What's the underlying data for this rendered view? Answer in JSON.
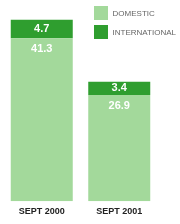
{
  "chart_data": {
    "type": "bar",
    "stacked": true,
    "categories": [
      "SEPT 2000",
      "SEPT 2001"
    ],
    "series": [
      {
        "name": "DOMESTIC",
        "color": "#a3d99b",
        "values": [
          41.3,
          26.9
        ]
      },
      {
        "name": "INTERNATIONAL",
        "color": "#2f9e2f",
        "values": [
          4.7,
          3.4
        ]
      }
    ],
    "data_labels": true,
    "grid": false,
    "tick_labels": "x",
    "legend": "top right"
  }
}
